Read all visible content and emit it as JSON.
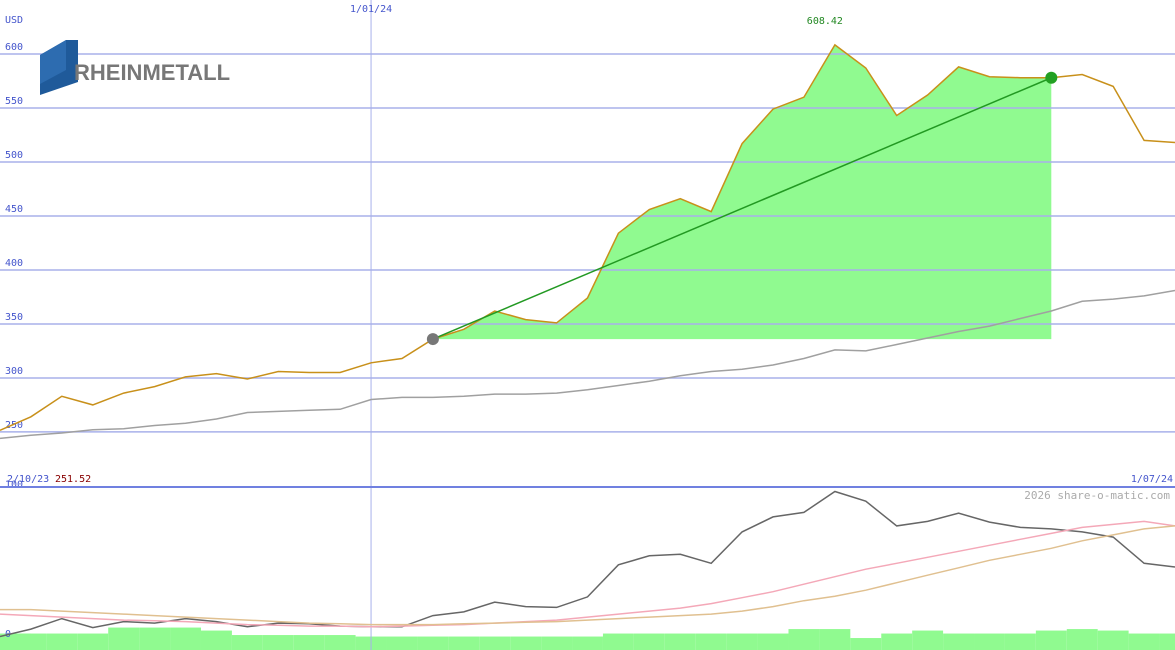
{
  "logo": "RHEINMETALL",
  "credit": "2026 share-o-matic.com",
  "chart_data": [
    {
      "type": "line",
      "y_label": "USD",
      "categories": [
        "2/10/23",
        null,
        null,
        null,
        null,
        null,
        null,
        null,
        null,
        null,
        null,
        null,
        "1/01/24",
        null,
        null,
        null,
        null,
        null,
        null,
        null,
        null,
        null,
        null,
        null,
        null,
        null,
        null,
        null,
        null,
        null,
        null,
        null,
        null,
        null,
        null,
        null,
        null,
        null,
        "1/07/24"
      ],
      "series": [
        {
          "color": "#c8901a",
          "fill": "#90fa90",
          "values": [
            251.52,
            264,
            283,
            275,
            286,
            292,
            301,
            304,
            299,
            306,
            305,
            305,
            314,
            318,
            336,
            345,
            362,
            354,
            351,
            374,
            434,
            456,
            466,
            454,
            517,
            549,
            560,
            608.42,
            587,
            543,
            562,
            588,
            579,
            578,
            578,
            581,
            570,
            520,
            518
          ],
          "value_labels": [
            "251.52",
            null,
            null,
            null,
            null,
            null,
            null,
            null,
            null,
            null,
            null,
            null,
            null,
            null,
            null,
            null,
            null,
            null,
            null,
            null,
            null,
            null,
            null,
            null,
            null,
            null,
            null,
            "608.42",
            null,
            null,
            null,
            null,
            null,
            null,
            null,
            null,
            null,
            null,
            null
          ]
        },
        {
          "color": "#a0a0a0",
          "values": [
            244,
            247,
            249,
            252,
            253,
            256,
            258,
            262,
            268,
            269,
            270,
            271,
            280,
            282,
            282,
            283,
            285,
            285,
            286,
            289,
            293,
            297,
            302,
            306,
            308,
            312,
            318,
            326,
            325,
            331,
            337,
            343,
            348,
            355,
            362,
            371,
            373,
            376,
            381
          ]
        }
      ],
      "highlight": {
        "from": 14,
        "to": 34,
        "color": "#90fa90",
        "line_color": "#229922"
      },
      "ylim": [
        199,
        650
      ],
      "yticks": [
        250,
        300,
        350,
        400,
        450,
        500,
        550,
        600
      ],
      "grid": true
    },
    {
      "type": "line",
      "series": [
        {
          "color": "#666666",
          "values": [
            3,
            8,
            15,
            9,
            13,
            12,
            15,
            13,
            9.5,
            12,
            11.5,
            10,
            9.5,
            9.5,
            17,
            19.5,
            26,
            23,
            22.5,
            29.5,
            51,
            57,
            58,
            52,
            73,
            83,
            86,
            100,
            93.5,
            77,
            80,
            85.5,
            79.5,
            76,
            75,
            73,
            69.5,
            52,
            49.5
          ]
        },
        {
          "color": "#f4a8b8",
          "values": [
            18,
            17,
            16,
            15,
            14,
            13.5,
            13,
            12,
            11,
            10.5,
            10,
            10,
            9.5,
            10,
            10.5,
            11,
            12,
            13,
            14,
            16,
            18,
            20,
            22,
            25,
            29,
            33,
            38,
            43,
            48,
            52,
            56,
            60,
            64,
            68,
            72,
            76,
            78,
            80,
            77
          ]
        },
        {
          "color": "#e0c090",
          "values": [
            21,
            21,
            20,
            19,
            18,
            17,
            16,
            15,
            14,
            13,
            12,
            11.5,
            11,
            11,
            11,
            11.5,
            12,
            12.5,
            13,
            14,
            15,
            16,
            17,
            18,
            20,
            23,
            27,
            30,
            34,
            39,
            44,
            49,
            54,
            58,
            62,
            67,
            71,
            75,
            77
          ]
        }
      ],
      "bars": {
        "color": "#90fa90",
        "values": [
          5,
          5,
          5,
          5,
          9,
          9,
          9,
          7,
          4,
          4,
          4,
          4,
          3,
          3,
          3,
          3,
          3,
          3,
          3,
          3,
          5,
          5,
          5,
          5,
          5,
          5,
          8,
          8,
          2,
          5,
          7,
          5,
          5,
          5,
          7,
          8,
          7,
          5,
          5
        ]
      },
      "ylim": [
        -6,
        103
      ],
      "yticks": [
        0,
        100
      ]
    }
  ]
}
